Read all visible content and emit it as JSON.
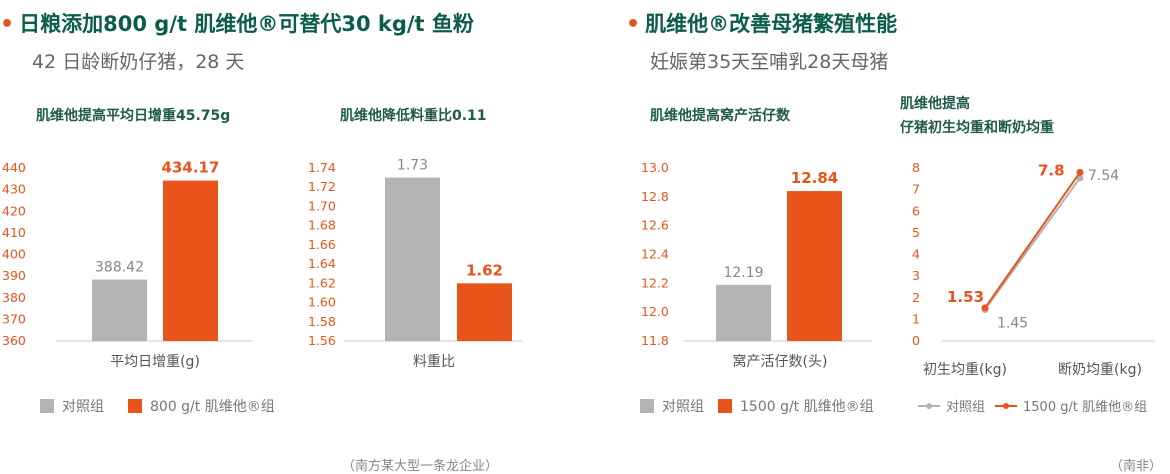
{
  "left": {
    "heading": "日粮添加800 g/t 肌维他®可替代30 kg/t 鱼粉",
    "subheading": "42 日龄断奶仔猪，28 天",
    "legend": [
      {
        "label": "对照组",
        "color": "#b3b3b3"
      },
      {
        "label": "800 g/t 肌维他®组",
        "color": "#e8541a"
      }
    ],
    "source": "（南方某大型一条龙企业）"
  },
  "right": {
    "heading": "肌维他®改善母猪繁殖性能",
    "subheading": "妊娠第35天至哺乳28天母猪",
    "legend": [
      {
        "label": "对照组",
        "color": "#b3b3b3"
      },
      {
        "label": "1500 g/t 肌维他®组",
        "color": "#e8541a"
      }
    ],
    "legend_line": [
      {
        "label": "对照组",
        "color": "#b3b3b3"
      },
      {
        "label": "1500 g/t 肌维他®组",
        "color": "#e8541a"
      }
    ],
    "source": "（南非）"
  },
  "bullet": "•",
  "chart_data": [
    {
      "type": "bar",
      "title": "肌维他提高平均日增重45.75g",
      "categories": [
        "平均日增重(g)"
      ],
      "series": [
        {
          "name": "对照组",
          "values": [
            388.42
          ],
          "label": "388.42",
          "color": "#b3b3b3"
        },
        {
          "name": "800 g/t 肌维他®组",
          "values": [
            434.17
          ],
          "label": "434.17",
          "color": "#e8541a"
        }
      ],
      "ylim": [
        360,
        440
      ],
      "yticks": [
        "440",
        "430",
        "420",
        "410",
        "400",
        "390",
        "380",
        "370",
        "360"
      ]
    },
    {
      "type": "bar",
      "title": "肌维他降低料重比0.11",
      "categories": [
        "料重比"
      ],
      "series": [
        {
          "name": "对照组",
          "values": [
            1.73
          ],
          "label": "1.73",
          "color": "#b3b3b3"
        },
        {
          "name": "800 g/t 肌维他®组",
          "values": [
            1.62
          ],
          "label": "1.62",
          "color": "#e8541a"
        }
      ],
      "ylim": [
        1.56,
        1.74
      ],
      "yticks": [
        "1.74",
        "1.72",
        "1.70",
        "1.68",
        "1.66",
        "1.64",
        "1.62",
        "1.60",
        "1.58",
        "1.56"
      ]
    },
    {
      "type": "bar",
      "title": "肌维他提高窝产活仔数",
      "categories": [
        "窝产活仔数(头)"
      ],
      "series": [
        {
          "name": "对照组",
          "values": [
            12.19
          ],
          "label": "12.19",
          "color": "#b3b3b3"
        },
        {
          "name": "1500 g/t 肌维他®组",
          "values": [
            12.84
          ],
          "label": "12.84",
          "color": "#e8541a"
        }
      ],
      "ylim": [
        11.8,
        13.0
      ],
      "yticks": [
        "13.0",
        "12.8",
        "12.6",
        "12.4",
        "12.2",
        "12.0",
        "11.8"
      ]
    },
    {
      "type": "line",
      "title": [
        "肌维他提高",
        "仔猪初生均重和断奶均重"
      ],
      "categories": [
        "初生均重(kg)",
        "断奶均重(kg)"
      ],
      "series": [
        {
          "name": "对照组",
          "values": [
            1.45,
            7.54
          ],
          "labels": [
            "1.45",
            "7.54"
          ],
          "color": "#b3b3b3"
        },
        {
          "name": "1500 g/t 肌维他®组",
          "values": [
            1.53,
            7.8
          ],
          "labels": [
            "1.53",
            "7.8"
          ],
          "color": "#e8541a"
        }
      ],
      "ylim": [
        0,
        8
      ],
      "yticks": [
        "8",
        "7",
        "6",
        "5",
        "4",
        "3",
        "2",
        "1",
        "0"
      ]
    }
  ]
}
